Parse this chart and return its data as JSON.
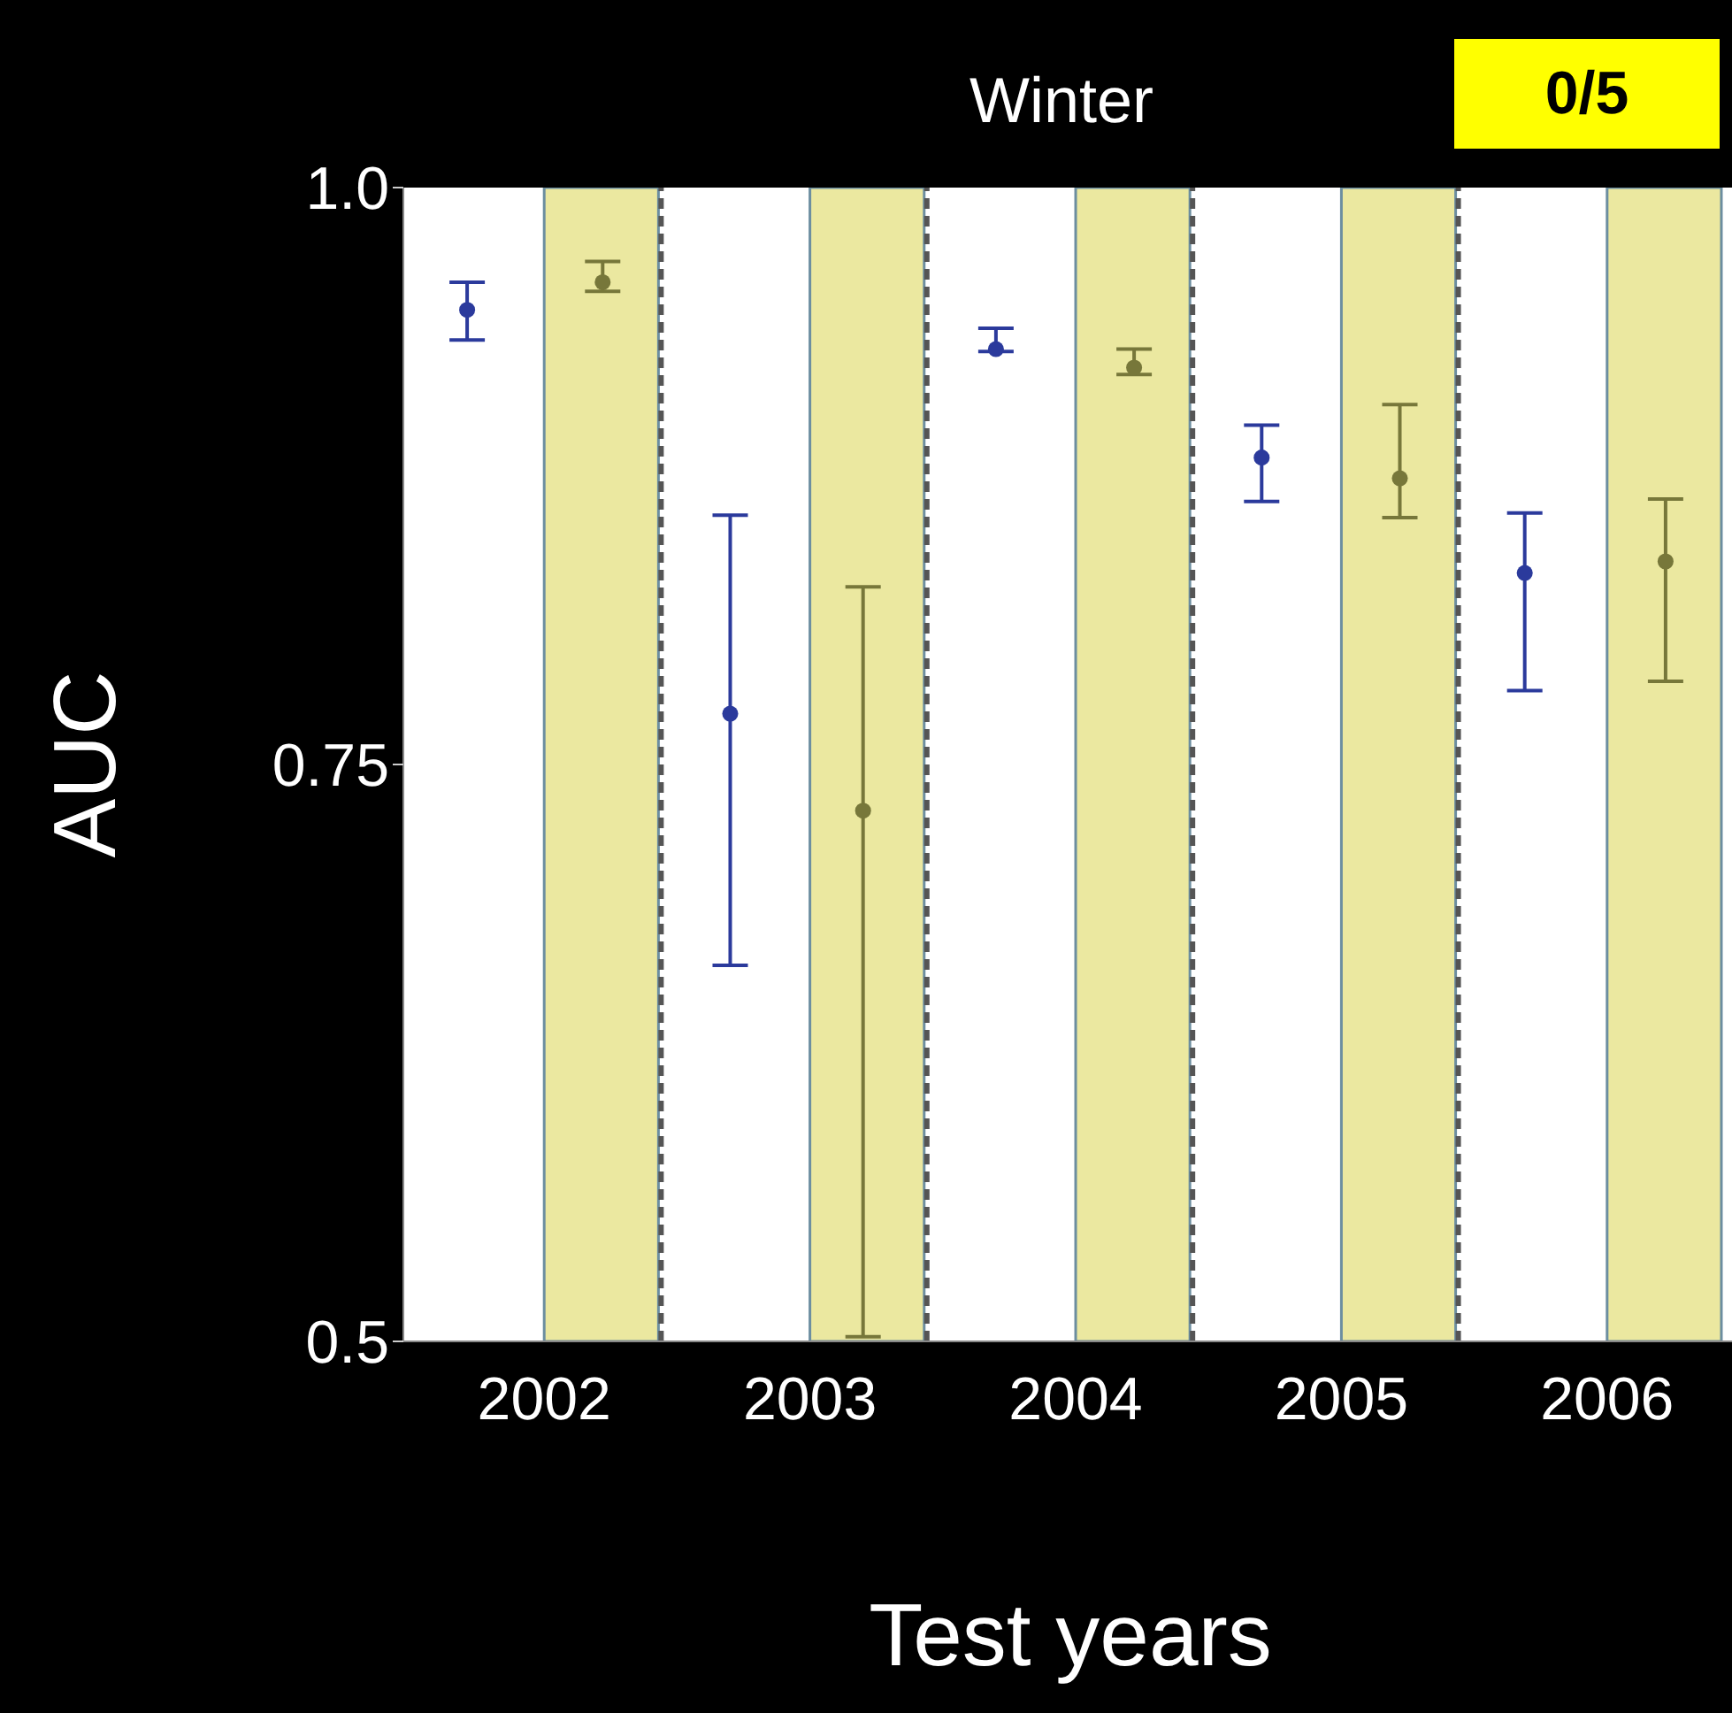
{
  "chart_data": {
    "type": "scatter",
    "title": "Winter",
    "xlabel": "Test years",
    "ylabel": "AUC",
    "annotations": [
      "0/5"
    ],
    "xlim": [
      2001.47,
      2006.47
    ],
    "xticks": [
      2002,
      2003,
      2004,
      2005,
      2006
    ],
    "ylim": [
      0.5,
      1.0
    ],
    "yticks": [
      0.5,
      0.75,
      {
        "value": 1.0,
        "label": "1.0"
      }
    ],
    "grid": false,
    "marker": "circle",
    "series": [
      {
        "color": "#2b3a9c",
        "x": [
          2001.71,
          2002.7,
          2003.7,
          2004.7,
          2005.69
        ],
        "values": [
          0.947,
          0.772,
          0.93,
          0.883,
          0.833
        ],
        "errors": [
          [
            0.934,
            0.959
          ],
          [
            0.663,
            0.858
          ],
          [
            0.929,
            0.939
          ],
          [
            0.864,
            0.897
          ],
          [
            0.782,
            0.859
          ]
        ]
      },
      {
        "color": "#77773a",
        "x": [
          2002.22,
          2003.2,
          2004.22,
          2005.22,
          2006.22
        ],
        "values": [
          0.959,
          0.73,
          0.922,
          0.874,
          0.838
        ],
        "errors": [
          [
            0.955,
            0.968
          ],
          [
            0.502,
            0.827
          ],
          [
            0.919,
            0.93
          ],
          [
            0.857,
            0.906
          ],
          [
            0.786,
            0.865
          ]
        ]
      }
    ],
    "bands": [
      {
        "axis": "x",
        "from": 2002,
        "to": 2002.43,
        "color": "#ebe8a0"
      },
      {
        "axis": "x",
        "from": 2003,
        "to": 2003.43,
        "color": "#ebe8a0"
      },
      {
        "axis": "x",
        "from": 2004,
        "to": 2004.43,
        "color": "#ebe8a0"
      },
      {
        "axis": "x",
        "from": 2005,
        "to": 2005.43,
        "color": "#ebe8a0"
      },
      {
        "axis": "x",
        "from": 2006,
        "to": 2006.43,
        "color": "#ebe8a0"
      }
    ],
    "ref_lines": [
      {
        "axis": "x",
        "value": 2002.44,
        "color": "#555555",
        "line_style": "dashed"
      },
      {
        "axis": "x",
        "value": 2003.44,
        "color": "#555555",
        "line_style": "dashed"
      },
      {
        "axis": "x",
        "value": 2004.44,
        "color": "#555555",
        "line_style": "dashed"
      },
      {
        "axis": "x",
        "value": 2005.44,
        "color": "#555555",
        "line_style": "dashed"
      }
    ]
  }
}
